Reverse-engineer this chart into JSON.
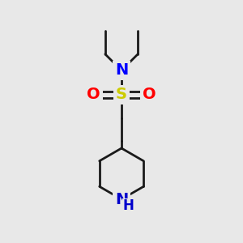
{
  "bg_color": "#e8e8e8",
  "bond_color": "#1a1a1a",
  "bond_width": 2.0,
  "N_color": "#0000ff",
  "S_color": "#cccc00",
  "O_color": "#ff0000",
  "NH_color": "#0000cc",
  "H_color": "#0000cc",
  "font_size": 14,
  "fig_width": 3.0,
  "fig_height": 3.0,
  "dpi": 100,
  "xlim": [
    0,
    10
  ],
  "ylim": [
    0,
    10
  ]
}
